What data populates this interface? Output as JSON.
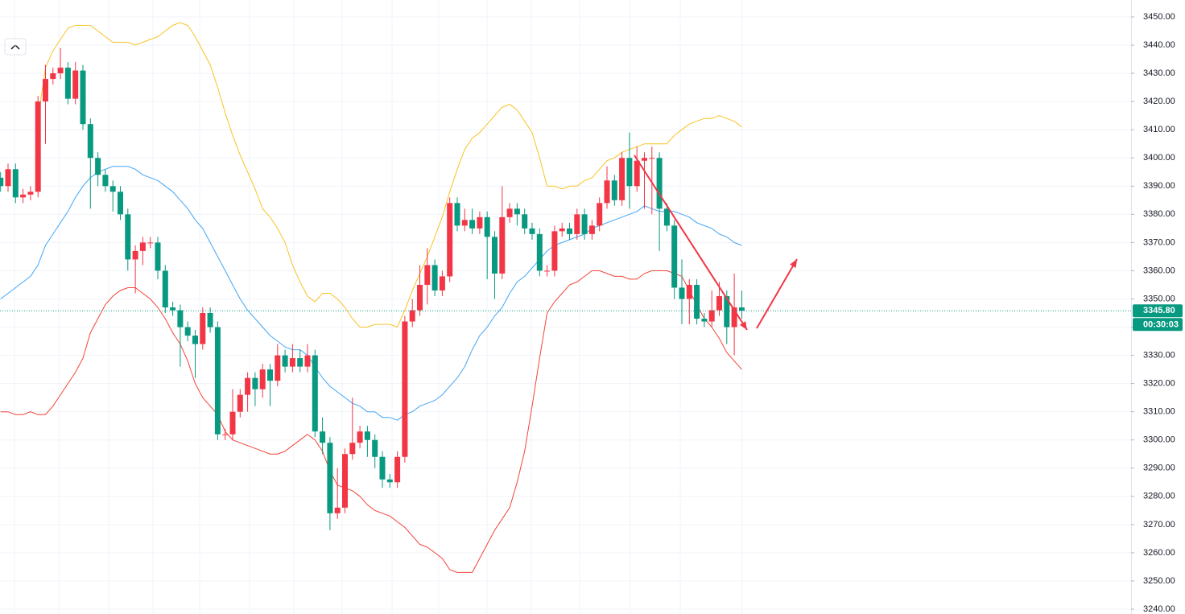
{
  "chart_data": {
    "type": "candlestick",
    "up_color": "#f23645",
    "down_color": "#089981",
    "open": [
      3393,
      3390,
      3396,
      3386,
      3387,
      3388,
      3420,
      3428,
      3430,
      3432,
      3421,
      3431,
      3412,
      3400,
      3394,
      3390,
      3388,
      3380,
      3364,
      3367,
      3370,
      3370,
      3360,
      3347,
      3346,
      3340,
      3337,
      3334,
      3345,
      3340,
      3302,
      3302,
      3310,
      3316,
      3322,
      3318,
      3325,
      3321,
      3330,
      3326,
      3329,
      3326,
      3330,
      3303,
      3299,
      3274,
      3276,
      3295,
      3299,
      3303,
      3300,
      3294,
      3286,
      3285,
      3294,
      3342,
      3346,
      3355,
      3362,
      3353,
      3358,
      3384,
      3376,
      3378,
      3375,
      3379,
      3372,
      3359,
      3379,
      3382,
      3380,
      3375,
      3373,
      3360,
      3360,
      3374,
      3375,
      3373,
      3380,
      3373,
      3376,
      3384,
      3392,
      3385,
      3400,
      3390,
      3399,
      3400,
      3400,
      3382,
      3376,
      3354,
      3350,
      3355,
      3343,
      3342,
      3346,
      3351,
      3340,
      3347
    ],
    "high": [
      3395,
      3398,
      3398,
      3389,
      3390,
      3422,
      3433,
      3432,
      3439,
      3434,
      3434,
      3433,
      3414,
      3402,
      3396,
      3392,
      3390,
      3382,
      3369,
      3372,
      3372,
      3372,
      3362,
      3349,
      3348,
      3342,
      3339,
      3347,
      3347,
      3342,
      3304,
      3318,
      3318,
      3324,
      3324,
      3327,
      3327,
      3334,
      3332,
      3334,
      3332,
      3334,
      3332,
      3308,
      3301,
      3290,
      3297,
      3315,
      3305,
      3305,
      3302,
      3296,
      3288,
      3296,
      3344,
      3350,
      3362,
      3368,
      3364,
      3360,
      3386,
      3386,
      3382,
      3382,
      3381,
      3381,
      3374,
      3390,
      3384,
      3384,
      3382,
      3377,
      3375,
      3362,
      3376,
      3377,
      3377,
      3382,
      3382,
      3378,
      3386,
      3397,
      3394,
      3402,
      3409,
      3404,
      3402,
      3404,
      3402,
      3384,
      3378,
      3364,
      3357,
      3357,
      3345,
      3353,
      3356,
      3353,
      3359,
      3353
    ],
    "low": [
      3388,
      3388,
      3384,
      3384,
      3385,
      3386,
      3405,
      3426,
      3428,
      3419,
      3419,
      3410,
      3382,
      3390,
      3388,
      3381,
      3378,
      3360,
      3352,
      3362,
      3368,
      3357,
      3345,
      3344,
      3326,
      3335,
      3322,
      3332,
      3338,
      3300,
      3300,
      3300,
      3308,
      3310,
      3312,
      3315,
      3312,
      3319,
      3324,
      3324,
      3324,
      3324,
      3301,
      3295,
      3268,
      3272,
      3274,
      3293,
      3297,
      3294,
      3290,
      3283,
      3283,
      3283,
      3292,
      3340,
      3344,
      3348,
      3351,
      3351,
      3356,
      3374,
      3374,
      3373,
      3373,
      3357,
      3350,
      3357,
      3377,
      3376,
      3373,
      3371,
      3358,
      3358,
      3358,
      3372,
      3371,
      3371,
      3371,
      3371,
      3374,
      3382,
      3383,
      3383,
      3382,
      3388,
      3382,
      3380,
      3367,
      3374,
      3350,
      3341,
      3341,
      3341,
      3340,
      3340,
      3344,
      3334,
      3330,
      3343
    ],
    "close": [
      3390,
      3396,
      3386,
      3387,
      3388,
      3420,
      3428,
      3430,
      3432,
      3421,
      3431,
      3412,
      3400,
      3394,
      3390,
      3388,
      3380,
      3364,
      3367,
      3370,
      3370,
      3360,
      3347,
      3346,
      3340,
      3337,
      3334,
      3345,
      3340,
      3302,
      3302,
      3310,
      3316,
      3322,
      3318,
      3325,
      3321,
      3330,
      3326,
      3329,
      3326,
      3330,
      3303,
      3299,
      3274,
      3276,
      3295,
      3299,
      3303,
      3300,
      3294,
      3286,
      3285,
      3294,
      3342,
      3346,
      3355,
      3362,
      3353,
      3358,
      3384,
      3376,
      3378,
      3375,
      3379,
      3372,
      3359,
      3379,
      3382,
      3380,
      3375,
      3373,
      3360,
      3360,
      3374,
      3375,
      3373,
      3380,
      3373,
      3376,
      3384,
      3392,
      3385,
      3400,
      3390,
      3399,
      3400,
      3400,
      3382,
      3376,
      3354,
      3350,
      3355,
      3343,
      3342,
      3346,
      3351,
      3340,
      3347,
      3345.8
    ],
    "bands": [
      {
        "color": "#f7c325",
        "values": [
          null,
          null,
          null,
          null,
          null,
          3414,
          3432,
          3438,
          3442,
          3446,
          3447,
          3447,
          3447,
          3445,
          3443,
          3441,
          3441,
          3441,
          3440,
          3441,
          3442,
          3443,
          3445,
          3447,
          3448,
          3447,
          3443,
          3438,
          3433,
          3425,
          3416,
          3408,
          3401,
          3395,
          3389,
          3382,
          3379,
          3375,
          3370,
          3362,
          3356,
          3351,
          3349,
          3352,
          3352,
          3350,
          3347,
          3343,
          3340,
          3340,
          3341,
          3341,
          3341,
          3340,
          3346,
          3353,
          3359,
          3365,
          3372,
          3379,
          3388,
          3396,
          3403,
          3407,
          3409,
          3412,
          3415,
          3418,
          3419,
          3417,
          3413,
          3409,
          3400,
          3390,
          3390,
          3389,
          3390,
          3390,
          3392,
          3393,
          3396,
          3399,
          3400,
          3402,
          3403,
          3404,
          3405,
          3405,
          3405,
          3405,
          3408,
          3410,
          3412,
          3413,
          3414,
          3414,
          3415,
          3414,
          3413,
          3411
        ]
      },
      {
        "color": "#42a5f5",
        "values": [
          3350,
          3352,
          3354,
          3356,
          3358,
          3362,
          3369,
          3373,
          3377,
          3381,
          3386,
          3390,
          3393,
          3395,
          3396,
          3397,
          3397,
          3397,
          3396,
          3394,
          3393,
          3392,
          3390,
          3388,
          3385,
          3382,
          3378,
          3375,
          3370,
          3365,
          3360,
          3355,
          3350,
          3346,
          3343,
          3340,
          3337,
          3335,
          3333,
          3332,
          3332,
          3330,
          3326,
          3322,
          3319,
          3317,
          3315,
          3313,
          3312,
          3310,
          3310,
          3308,
          3308,
          3307,
          3309,
          3310,
          3312,
          3313,
          3314,
          3316,
          3319,
          3322,
          3326,
          3332,
          3337,
          3340,
          3344,
          3347,
          3352,
          3356,
          3358,
          3361,
          3364,
          3367,
          3369,
          3370,
          3371,
          3372,
          3373,
          3375,
          3376,
          3377,
          3378,
          3379,
          3380,
          3381,
          3383,
          3382,
          3381,
          3381,
          3381,
          3380,
          3379,
          3377,
          3376,
          3375,
          3373,
          3372,
          3370,
          3369
        ]
      },
      {
        "color": "#f44336",
        "values": [
          3310,
          3310,
          3309,
          3309,
          3310,
          3309,
          3309,
          3312,
          3316,
          3320,
          3324,
          3329,
          3338,
          3343,
          3348,
          3351,
          3353,
          3354,
          3354,
          3352,
          3350,
          3347,
          3343,
          3338,
          3334,
          3328,
          3320,
          3315,
          3312,
          3309,
          3303,
          3300,
          3299,
          3298,
          3297,
          3296,
          3295,
          3295,
          3296,
          3298,
          3300,
          3302,
          3300,
          3296,
          3289,
          3284,
          3283,
          3282,
          3280,
          3277,
          3275,
          3274,
          3273,
          3271,
          3269,
          3266,
          3263,
          3262,
          3260,
          3258,
          3254,
          3253,
          3253,
          3253,
          3258,
          3263,
          3268,
          3272,
          3276,
          3285,
          3296,
          3312,
          3329,
          3345,
          3349,
          3352,
          3355,
          3356,
          3358,
          3360,
          3360,
          3359,
          3358,
          3358,
          3357,
          3357,
          3359,
          3360,
          3360,
          3360,
          3359,
          3358,
          3353,
          3348,
          3343,
          3340,
          3336,
          3331,
          3328,
          3325
        ]
      }
    ],
    "ylim": [
      3240,
      3450
    ],
    "yticks": [
      {
        "value": 3240,
        "label": "3240.00"
      },
      {
        "value": 3250,
        "label": "3250.00"
      },
      {
        "value": 3260,
        "label": "3260.00"
      },
      {
        "value": 3270,
        "label": "3270.00"
      },
      {
        "value": 3280,
        "label": "3280.00"
      },
      {
        "value": 3290,
        "label": "3290.00"
      },
      {
        "value": 3300,
        "label": "3300.00"
      },
      {
        "value": 3310,
        "label": "3310.00"
      },
      {
        "value": 3320,
        "label": "3320.00"
      },
      {
        "value": 3330,
        "label": "3330.00"
      },
      {
        "value": 3340,
        "label": "3340.00"
      },
      {
        "value": 3350,
        "label": "3350.00"
      },
      {
        "value": 3360,
        "label": "3360.00"
      },
      {
        "value": 3370,
        "label": "3370.00"
      },
      {
        "value": 3380,
        "label": "3380.00"
      },
      {
        "value": 3390,
        "label": "3390.00"
      },
      {
        "value": 3400,
        "label": "3400.00"
      },
      {
        "value": 3410,
        "label": "3410.00"
      },
      {
        "value": 3420,
        "label": "3420.00"
      },
      {
        "value": 3430,
        "label": "3430.00"
      },
      {
        "value": 3440,
        "label": "3440.00"
      },
      {
        "value": 3450,
        "label": "3450.00"
      }
    ],
    "grid": true,
    "last_price": {
      "value": 3345.8,
      "label": "3345.80"
    },
    "countdown": "00:30:03"
  }
}
